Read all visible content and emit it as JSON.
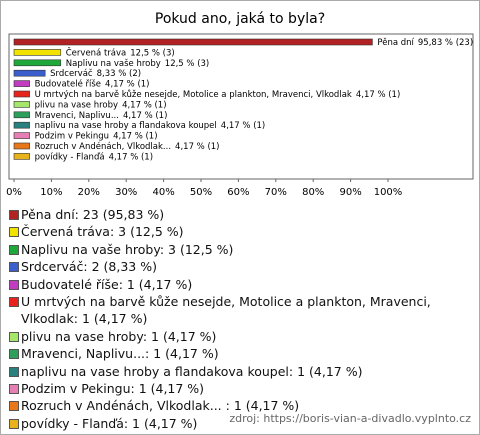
{
  "chart_data": {
    "type": "bar",
    "orientation": "horizontal",
    "title": "Pokud ano, jaká to byla?",
    "categories": [
      "Pěna dní",
      "Červená tráva",
      "Naplivu na vaše hroby",
      "Srdcerváč",
      "Budovatelé říše",
      "U mrtvých na barvě kůže nesejde, Motolice a plankton, Mravenci, Vlkodlak",
      "plivu na vase hroby",
      "Mravenci, Naplivu...",
      "naplivu na vase hroby a flandakova koupel",
      "Podzim v Pekingu",
      "Rozruch v Andénách, Vlkodlak...",
      "povídky - Flanďá"
    ],
    "values": [
      95.83,
      12.5,
      12.5,
      8.33,
      4.17,
      4.17,
      4.17,
      4.17,
      4.17,
      4.17,
      4.17,
      4.17
    ],
    "value_labels": [
      "95,83 % (23)",
      "12,5 % (3)",
      "12,5 % (3)",
      "8,33 % (2)",
      "4,17 % (1)",
      "4,17 % (1)",
      "4,17 % (1)",
      "4,17 % (1)",
      "4,17 % (1)",
      "4,17 % (1)",
      "4,17 % (1)",
      "4,17 % (1)"
    ],
    "legend_labels": [
      ": 23 (95,83 %)",
      ": 3 (12,5 %)",
      ": 3 (12,5 %)",
      ": 2 (8,33 %)",
      ": 1 (4,17 %)",
      ": 1 (4,17 %)",
      ": 1 (4,17 %)",
      ": 1 (4,17 %)",
      ": 1 (4,17 %)",
      ": 1 (4,17 %)",
      " : 1 (4,17 %)",
      ": 1 (4,17 %)"
    ],
    "colors": [
      "#b22222",
      "#f2e200",
      "#1fa83a",
      "#3a5fcd",
      "#c13cc1",
      "#e8231e",
      "#a6e66b",
      "#2e9e5b",
      "#2a7f7f",
      "#e77fb4",
      "#e8761a",
      "#e8b21a"
    ],
    "xlim": [
      0,
      100
    ],
    "xticks": [
      {
        "value": 0,
        "label": "0%"
      },
      {
        "value": 10,
        "label": "10%"
      },
      {
        "value": 20,
        "label": "20%"
      },
      {
        "value": 30,
        "label": "30%"
      },
      {
        "value": 40,
        "label": "40%"
      },
      {
        "value": 50,
        "label": "50%"
      },
      {
        "value": 60,
        "label": "60%"
      },
      {
        "value": 70,
        "label": "70%"
      },
      {
        "value": 80,
        "label": "80%"
      },
      {
        "value": 90,
        "label": "90%"
      },
      {
        "value": 100,
        "label": "100%"
      }
    ],
    "source": "zdroj: https://boris-vian-a-divadlo.vyplnto.cz"
  }
}
